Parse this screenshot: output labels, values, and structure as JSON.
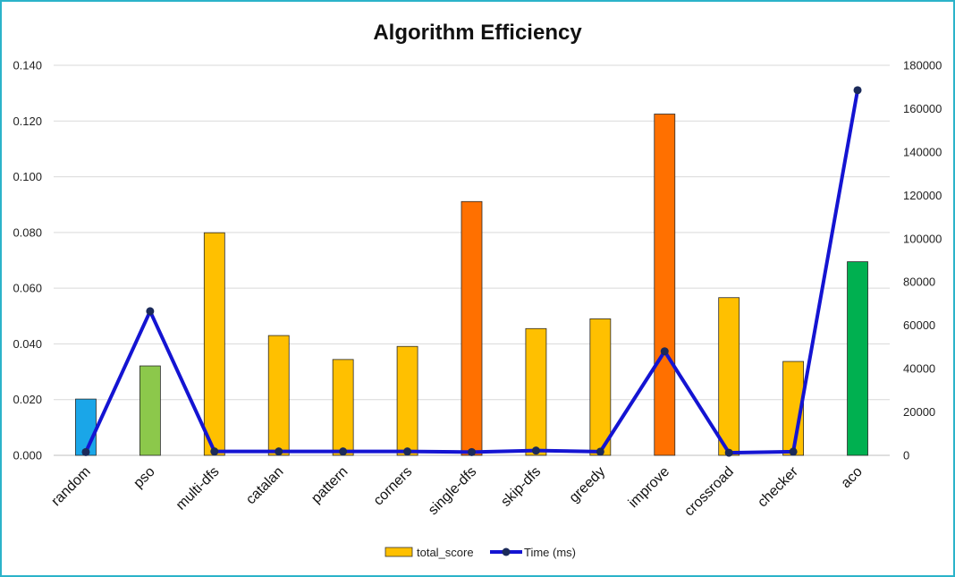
{
  "chart_data": {
    "type": "bar",
    "title": "Algorithm Efficiency",
    "categories": [
      "random",
      "pso",
      "multi-dfs",
      "catalan",
      "pattern",
      "corners",
      "single-dfs",
      "skip-dfs",
      "greedy",
      "improve",
      "crossroad",
      "checker",
      "aco"
    ],
    "series": [
      {
        "name": "total_score",
        "type": "bar",
        "axis": "left",
        "values": [
          0.0202,
          0.0321,
          0.0799,
          0.043,
          0.0344,
          0.0391,
          0.0911,
          0.0455,
          0.049,
          0.1225,
          0.0566,
          0.0337,
          0.0695
        ],
        "colors": [
          "#1aa6e8",
          "#8cc84b",
          "#ffc000",
          "#ffc000",
          "#ffc000",
          "#ffc000",
          "#ff7000",
          "#ffc000",
          "#ffc000",
          "#ff7000",
          "#ffc000",
          "#ffc000",
          "#00b050"
        ]
      },
      {
        "name": "Time (ms)",
        "type": "line",
        "axis": "right",
        "values": [
          1500,
          66500,
          1800,
          1800,
          1800,
          1800,
          1500,
          2200,
          1700,
          48000,
          1200,
          1700,
          168500
        ],
        "color": "#1414d2",
        "marker_color": "#1b2a5a"
      }
    ],
    "yleft": {
      "lim": [
        0,
        0.14
      ],
      "ticks": [
        "0.000",
        "0.020",
        "0.040",
        "0.060",
        "0.080",
        "0.100",
        "0.120",
        "0.140"
      ]
    },
    "yright": {
      "lim": [
        0,
        180000
      ],
      "ticks": [
        "0",
        "20000",
        "40000",
        "60000",
        "80000",
        "100000",
        "120000",
        "140000",
        "160000",
        "180000"
      ]
    },
    "grid": true,
    "legend_position": "bottom"
  }
}
